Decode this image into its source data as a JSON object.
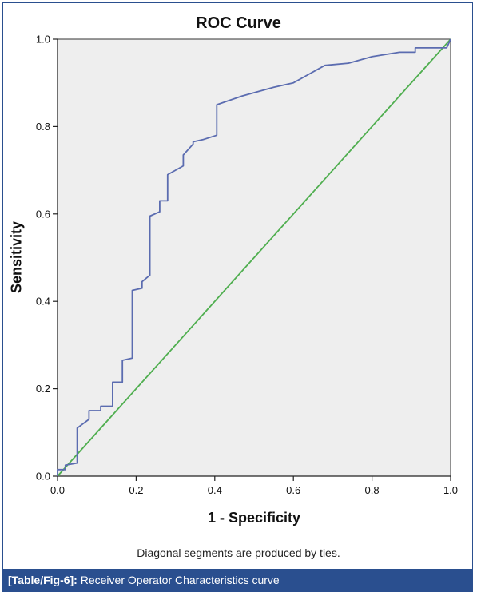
{
  "chart_data": {
    "type": "line",
    "title": "ROC Curve",
    "xlabel": "1 - Specificity",
    "ylabel": "Sensitivity",
    "xlim": [
      0,
      1
    ],
    "ylim": [
      0,
      1
    ],
    "x_ticks": [
      "0.0",
      "0.2",
      "0.4",
      "0.6",
      "0.8",
      "1.0"
    ],
    "y_ticks": [
      "0.0",
      "0.2",
      "0.4",
      "0.6",
      "0.8",
      "1.0"
    ],
    "grid": false,
    "series": [
      {
        "color": "#5b6cb0",
        "x": [
          0.0,
          0.0,
          0.02,
          0.02,
          0.05,
          0.05,
          0.08,
          0.08,
          0.11,
          0.11,
          0.14,
          0.14,
          0.165,
          0.165,
          0.19,
          0.19,
          0.215,
          0.215,
          0.235,
          0.235,
          0.26,
          0.26,
          0.28,
          0.28,
          0.3,
          0.3,
          0.32,
          0.32,
          0.345,
          0.345,
          0.37,
          0.37,
          0.405,
          0.405,
          0.47,
          0.55,
          0.6,
          0.68,
          0.74,
          0.78,
          0.8,
          0.87,
          0.91,
          0.91,
          0.99,
          1.0
        ],
        "y": [
          0.0,
          0.015,
          0.015,
          0.025,
          0.03,
          0.11,
          0.13,
          0.15,
          0.15,
          0.16,
          0.16,
          0.215,
          0.215,
          0.265,
          0.27,
          0.425,
          0.43,
          0.445,
          0.46,
          0.595,
          0.605,
          0.63,
          0.63,
          0.69,
          0.7,
          0.7,
          0.71,
          0.735,
          0.76,
          0.765,
          0.77,
          0.77,
          0.78,
          0.85,
          0.87,
          0.89,
          0.9,
          0.94,
          0.945,
          0.955,
          0.96,
          0.97,
          0.97,
          0.98,
          0.98,
          1.0
        ]
      },
      {
        "color": "#4fae4f",
        "x": [
          0,
          1
        ],
        "y": [
          0,
          1
        ]
      }
    ],
    "plot_background": "#eeeeee",
    "annotation": "Diagonal segments are produced by ties."
  },
  "caption": {
    "label": "[Table/Fig-6]:",
    "text": " Receiver Operator Characteristics curve",
    "background": "#2a4f8f"
  }
}
